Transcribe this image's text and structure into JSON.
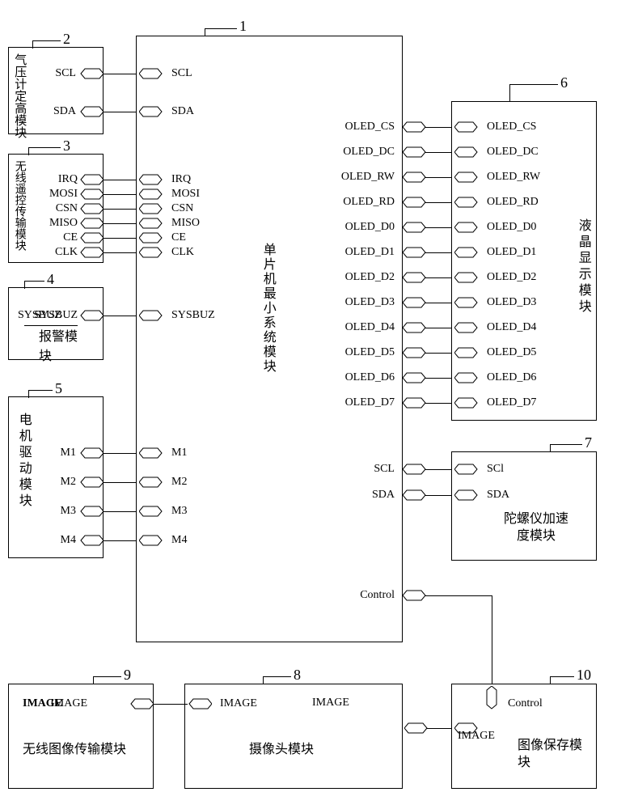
{
  "blocks": {
    "mcu": {
      "num": "1",
      "title": "单片机最小系统模块"
    },
    "barometer": {
      "num": "2",
      "title": "气压计定高模块",
      "pins_right": [
        "SCL",
        "SDA"
      ]
    },
    "rc": {
      "num": "3",
      "title": "无线遥控传输模块",
      "pins_right": [
        "IRQ",
        "MOSI",
        "CSN",
        "MISO",
        "CE",
        "CLK"
      ]
    },
    "alarm": {
      "num": "4",
      "title": "报警模块",
      "pins_right": [
        "SYSBUZ"
      ]
    },
    "motor": {
      "num": "5",
      "title": "电机驱动模块",
      "pins_right": [
        "M1",
        "M2",
        "M3",
        "M4"
      ]
    },
    "lcd": {
      "num": "6",
      "title": "液晶显示模块",
      "pins_left": [
        "OLED_CS",
        "OLED_DC",
        "OLED_RW",
        "OLED_RD",
        "OLED_D0",
        "OLED_D1",
        "OLED_D2",
        "OLED_D3",
        "OLED_D4",
        "OLED_D5",
        "OLED_D6",
        "OLED_D7"
      ]
    },
    "gyro": {
      "num": "7",
      "title": "陀螺仪加速度模块",
      "pins_left": [
        "SCl",
        "SDA"
      ]
    },
    "camera": {
      "num": "8",
      "title": "摄像头模块",
      "pins_left": [
        "IMAGE"
      ],
      "pins_right": [
        "IMAGE"
      ]
    },
    "wimage": {
      "num": "9",
      "title": "无线图像传输模块",
      "pins_right": [
        "IMAGE"
      ]
    },
    "imgsave": {
      "num": "10",
      "title": "图像保存模块",
      "pins_left": [
        "IMAGE"
      ],
      "pins_top": [
        "Control"
      ]
    }
  },
  "mcu_pins_left": [
    "SCL",
    "SDA",
    "IRQ",
    "MOSI",
    "CSN",
    "MISO",
    "CE",
    "CLK",
    "SYSBUZ",
    "M1",
    "M2",
    "M3",
    "M4"
  ],
  "mcu_pins_right_oled": [
    "OLED_CS",
    "OLED_DC",
    "OLED_RW",
    "OLED_RD",
    "OLED_D0",
    "OLED_D1",
    "OLED_D2",
    "OLED_D3",
    "OLED_D4",
    "OLED_D5",
    "OLED_D6",
    "OLED_D7"
  ],
  "mcu_pins_right_i2c": [
    "SCL",
    "SDA"
  ],
  "mcu_pin_control": "Control",
  "style": {
    "font_pin": 14,
    "font_title": 16,
    "font_num": 18,
    "border_color": "#000000",
    "bg": "#ffffff"
  }
}
